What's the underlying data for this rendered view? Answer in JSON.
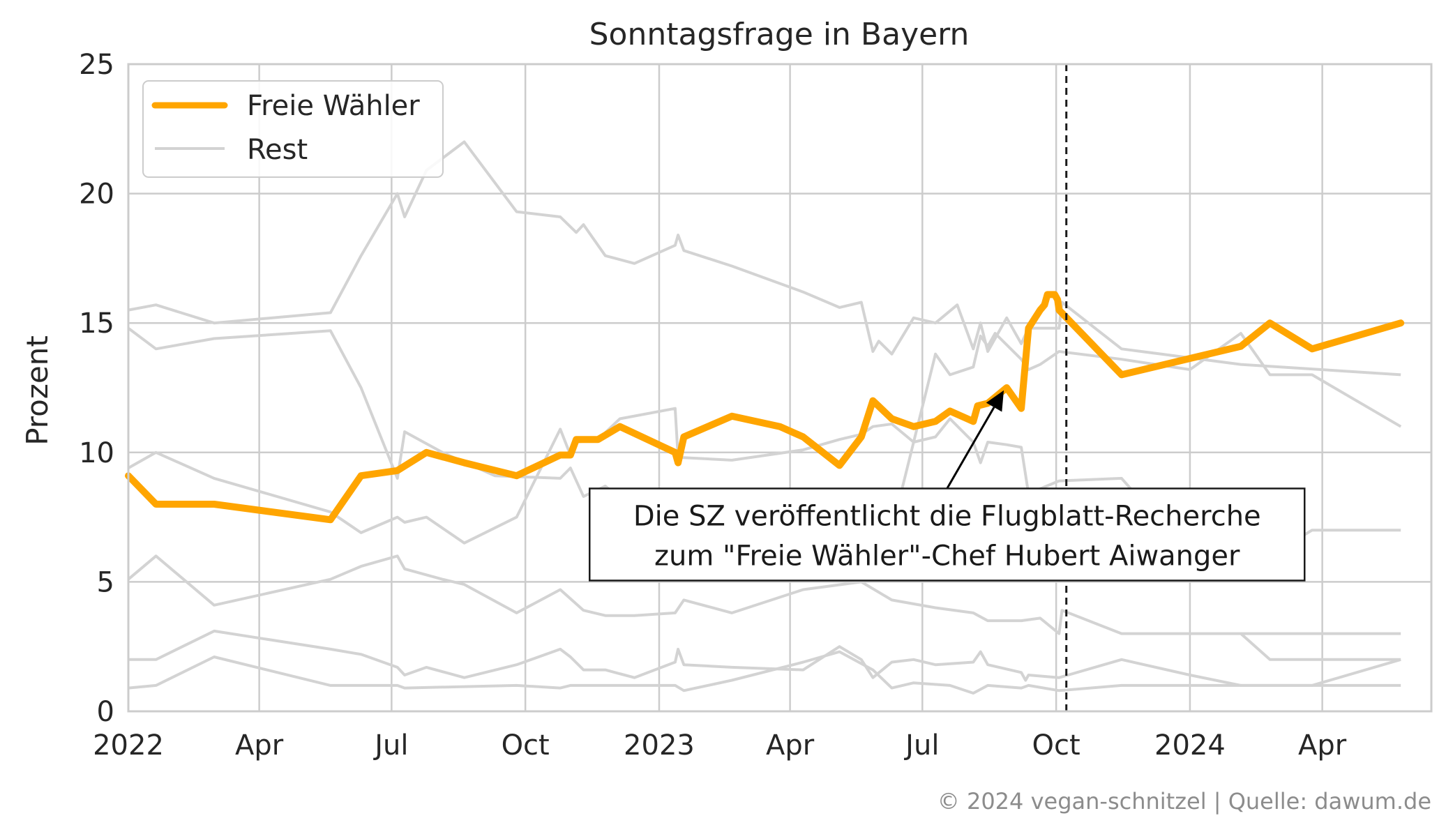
{
  "chart_data": {
    "type": "line",
    "title": "Sonntagsfrage in Bayern",
    "xlabel": "",
    "ylabel": "Prozent",
    "xlim": [
      "2022-01-01",
      "2024-06-15"
    ],
    "ylim": [
      0,
      25
    ],
    "yticks": [
      0,
      5,
      10,
      15,
      20,
      25
    ],
    "xticks": [
      {
        "date": "2022-01-01",
        "label": "2022"
      },
      {
        "date": "2022-04-01",
        "label": "Apr"
      },
      {
        "date": "2022-07-01",
        "label": "Jul"
      },
      {
        "date": "2022-10-01",
        "label": "Oct"
      },
      {
        "date": "2023-01-01",
        "label": "2023"
      },
      {
        "date": "2023-04-01",
        "label": "Apr"
      },
      {
        "date": "2023-07-01",
        "label": "Jul"
      },
      {
        "date": "2023-10-01",
        "label": "Oct"
      },
      {
        "date": "2024-01-01",
        "label": "2024"
      },
      {
        "date": "2024-04-01",
        "label": "Apr"
      }
    ],
    "grid": true,
    "legend_position": "top-left",
    "legend": [
      {
        "label": "Freie Wähler",
        "color": "#ffa500"
      },
      {
        "label": "Rest",
        "color": "#d3d3d3"
      }
    ],
    "vline": {
      "date": "2023-10-08",
      "style": "dashed",
      "color": "#1a1a1a"
    },
    "annotation": {
      "lines": [
        "Die SZ veröffentlicht die Flugblatt-Recherche",
        "zum \"Freie Wähler\"-Chef Hubert Aiwanger"
      ],
      "point": {
        "date": "2023-08-26",
        "value": 12.4
      },
      "text_anchor": {
        "date": "2023-07-18",
        "value": 8.5
      }
    },
    "highlight_series": {
      "name": "Freie Wähler",
      "color": "#ffa500",
      "points": [
        [
          "2022-01-01",
          9.1
        ],
        [
          "2022-01-20",
          8.0
        ],
        [
          "2022-03-01",
          8.0
        ],
        [
          "2022-05-20",
          7.4
        ],
        [
          "2022-06-10",
          9.1
        ],
        [
          "2022-07-05",
          9.3
        ],
        [
          "2022-07-25",
          10.0
        ],
        [
          "2022-08-20",
          9.6
        ],
        [
          "2022-09-25",
          9.1
        ],
        [
          "2022-10-25",
          9.9
        ],
        [
          "2022-11-01",
          9.9
        ],
        [
          "2022-11-05",
          10.5
        ],
        [
          "2022-11-20",
          10.5
        ],
        [
          "2022-12-05",
          11.0
        ],
        [
          "2023-01-12",
          10.0
        ],
        [
          "2023-01-14",
          9.6
        ],
        [
          "2023-01-18",
          10.6
        ],
        [
          "2023-02-20",
          11.4
        ],
        [
          "2023-03-25",
          11.0
        ],
        [
          "2023-04-10",
          10.6
        ],
        [
          "2023-05-05",
          9.5
        ],
        [
          "2023-05-20",
          10.6
        ],
        [
          "2023-05-28",
          12.0
        ],
        [
          "2023-06-10",
          11.3
        ],
        [
          "2023-06-25",
          11.0
        ],
        [
          "2023-07-10",
          11.2
        ],
        [
          "2023-07-20",
          11.6
        ],
        [
          "2023-08-05",
          11.2
        ],
        [
          "2023-08-08",
          11.8
        ],
        [
          "2023-08-15",
          11.9
        ],
        [
          "2023-08-28",
          12.5
        ],
        [
          "2023-09-07",
          11.7
        ],
        [
          "2023-09-12",
          14.8
        ],
        [
          "2023-09-20",
          15.5
        ],
        [
          "2023-09-23",
          15.7
        ],
        [
          "2023-09-25",
          16.1
        ],
        [
          "2023-09-30",
          16.1
        ],
        [
          "2023-10-02",
          15.9
        ],
        [
          "2023-10-03",
          15.5
        ],
        [
          "2023-11-15",
          13.0
        ],
        [
          "2024-02-05",
          14.1
        ],
        [
          "2024-02-25",
          15.0
        ],
        [
          "2024-03-25",
          14.0
        ],
        [
          "2024-05-25",
          15.0
        ]
      ]
    },
    "rest_series": [
      {
        "points": [
          [
            "2022-01-01",
            15.5
          ],
          [
            "2022-01-20",
            15.7
          ],
          [
            "2022-03-01",
            15.0
          ],
          [
            "2022-05-20",
            15.4
          ],
          [
            "2022-06-10",
            17.6
          ],
          [
            "2022-07-05",
            20.0
          ],
          [
            "2022-07-10",
            19.1
          ],
          [
            "2022-07-25",
            20.9
          ],
          [
            "2022-08-20",
            22.0
          ],
          [
            "2022-09-25",
            19.3
          ],
          [
            "2022-10-25",
            19.1
          ],
          [
            "2022-11-05",
            18.5
          ],
          [
            "2022-11-10",
            18.8
          ],
          [
            "2022-11-25",
            17.6
          ],
          [
            "2022-12-15",
            17.3
          ],
          [
            "2023-01-12",
            18.0
          ],
          [
            "2023-01-14",
            18.4
          ],
          [
            "2023-01-18",
            17.8
          ],
          [
            "2023-02-20",
            17.2
          ],
          [
            "2023-04-10",
            16.2
          ],
          [
            "2023-05-05",
            15.6
          ],
          [
            "2023-05-20",
            15.8
          ],
          [
            "2023-05-28",
            13.9
          ],
          [
            "2023-06-01",
            14.3
          ],
          [
            "2023-06-10",
            13.8
          ],
          [
            "2023-06-25",
            15.2
          ],
          [
            "2023-07-10",
            15.0
          ],
          [
            "2023-07-25",
            15.7
          ],
          [
            "2023-08-05",
            14.0
          ],
          [
            "2023-08-10",
            15.0
          ],
          [
            "2023-08-15",
            13.9
          ],
          [
            "2023-08-28",
            15.2
          ],
          [
            "2023-09-07",
            14.2
          ],
          [
            "2023-09-12",
            14.8
          ],
          [
            "2023-10-03",
            14.8
          ],
          [
            "2023-10-05",
            15.8
          ],
          [
            "2023-11-15",
            14.0
          ],
          [
            "2024-02-05",
            13.4
          ],
          [
            "2024-05-25",
            13.0
          ]
        ]
      },
      {
        "points": [
          [
            "2022-01-01",
            14.8
          ],
          [
            "2022-01-20",
            14.0
          ],
          [
            "2022-03-01",
            14.4
          ],
          [
            "2022-05-20",
            14.7
          ],
          [
            "2022-06-10",
            12.5
          ],
          [
            "2022-07-05",
            9.0
          ],
          [
            "2022-07-10",
            10.8
          ],
          [
            "2022-08-05",
            10.0
          ],
          [
            "2022-09-10",
            9.1
          ],
          [
            "2022-10-25",
            9.0
          ],
          [
            "2022-11-01",
            9.4
          ],
          [
            "2022-11-10",
            8.3
          ],
          [
            "2022-11-25",
            8.7
          ],
          [
            "2022-12-15",
            7.8
          ],
          [
            "2023-01-12",
            7.5
          ],
          [
            "2023-01-18",
            7.1
          ],
          [
            "2023-02-20",
            7.4
          ],
          [
            "2023-04-10",
            7.6
          ],
          [
            "2023-05-20",
            7.2
          ],
          [
            "2023-06-10",
            7.0
          ],
          [
            "2023-07-10",
            13.8
          ],
          [
            "2023-07-20",
            13.0
          ],
          [
            "2023-08-05",
            13.3
          ],
          [
            "2023-08-10",
            14.5
          ],
          [
            "2023-08-15",
            14.1
          ],
          [
            "2023-08-20",
            14.6
          ],
          [
            "2023-09-07",
            13.6
          ],
          [
            "2023-09-12",
            13.2
          ],
          [
            "2023-09-20",
            13.4
          ],
          [
            "2023-10-03",
            13.9
          ],
          [
            "2023-11-15",
            13.6
          ],
          [
            "2024-01-01",
            13.2
          ],
          [
            "2024-02-05",
            14.6
          ],
          [
            "2024-02-25",
            13.0
          ],
          [
            "2024-03-25",
            13.0
          ],
          [
            "2024-05-25",
            11.0
          ]
        ]
      },
      {
        "points": [
          [
            "2022-01-01",
            9.4
          ],
          [
            "2022-01-20",
            10.0
          ],
          [
            "2022-03-01",
            9.0
          ],
          [
            "2022-05-20",
            7.7
          ],
          [
            "2022-06-10",
            6.9
          ],
          [
            "2022-07-05",
            7.5
          ],
          [
            "2022-07-10",
            7.3
          ],
          [
            "2022-07-25",
            7.5
          ],
          [
            "2022-08-20",
            6.5
          ],
          [
            "2022-09-25",
            7.5
          ],
          [
            "2022-10-25",
            10.9
          ],
          [
            "2022-11-01",
            9.9
          ],
          [
            "2022-11-05",
            10.4
          ],
          [
            "2022-11-20",
            10.5
          ],
          [
            "2022-12-05",
            11.3
          ],
          [
            "2023-01-12",
            11.7
          ],
          [
            "2023-01-14",
            9.8
          ],
          [
            "2023-01-18",
            9.8
          ],
          [
            "2023-02-20",
            9.7
          ],
          [
            "2023-04-10",
            10.1
          ],
          [
            "2023-05-05",
            10.5
          ],
          [
            "2023-05-20",
            10.7
          ],
          [
            "2023-05-28",
            11.0
          ],
          [
            "2023-06-10",
            11.1
          ],
          [
            "2023-06-25",
            10.4
          ],
          [
            "2023-07-10",
            10.6
          ],
          [
            "2023-07-20",
            11.3
          ],
          [
            "2023-08-05",
            10.4
          ],
          [
            "2023-08-10",
            9.6
          ],
          [
            "2023-08-15",
            10.4
          ],
          [
            "2023-08-28",
            10.3
          ],
          [
            "2023-09-07",
            10.2
          ],
          [
            "2023-09-12",
            8.4
          ],
          [
            "2023-09-20",
            8.6
          ],
          [
            "2023-10-03",
            8.9
          ],
          [
            "2023-11-15",
            9.0
          ],
          [
            "2024-01-01",
            6.0
          ],
          [
            "2024-02-05",
            6.6
          ],
          [
            "2024-02-25",
            6.0
          ],
          [
            "2024-03-25",
            7.0
          ],
          [
            "2024-05-25",
            7.0
          ]
        ]
      },
      {
        "points": [
          [
            "2022-01-01",
            5.1
          ],
          [
            "2022-01-20",
            6.0
          ],
          [
            "2022-03-01",
            4.1
          ],
          [
            "2022-05-20",
            5.1
          ],
          [
            "2022-06-10",
            5.6
          ],
          [
            "2022-07-05",
            6.0
          ],
          [
            "2022-07-10",
            5.5
          ],
          [
            "2022-08-05",
            5.1
          ],
          [
            "2022-08-20",
            4.9
          ],
          [
            "2022-09-25",
            3.8
          ],
          [
            "2022-10-25",
            4.7
          ],
          [
            "2022-11-10",
            3.9
          ],
          [
            "2022-11-25",
            3.7
          ],
          [
            "2022-12-15",
            3.7
          ],
          [
            "2023-01-12",
            3.8
          ],
          [
            "2023-01-18",
            4.3
          ],
          [
            "2023-02-20",
            3.8
          ],
          [
            "2023-04-10",
            4.7
          ],
          [
            "2023-05-20",
            5.0
          ],
          [
            "2023-06-10",
            4.3
          ],
          [
            "2023-07-10",
            4.0
          ],
          [
            "2023-08-05",
            3.8
          ],
          [
            "2023-08-15",
            3.5
          ],
          [
            "2023-09-07",
            3.5
          ],
          [
            "2023-09-20",
            3.6
          ],
          [
            "2023-10-03",
            3.0
          ],
          [
            "2023-10-05",
            3.9
          ],
          [
            "2023-11-15",
            3.0
          ],
          [
            "2024-01-01",
            3.0
          ],
          [
            "2024-02-05",
            3.0
          ],
          [
            "2024-02-25",
            2.0
          ],
          [
            "2024-05-25",
            2.0
          ]
        ]
      },
      {
        "points": [
          [
            "2022-01-01",
            2.0
          ],
          [
            "2022-01-20",
            2.0
          ],
          [
            "2022-03-01",
            3.1
          ],
          [
            "2022-05-20",
            2.4
          ],
          [
            "2022-06-10",
            2.2
          ],
          [
            "2022-07-05",
            1.7
          ],
          [
            "2022-07-10",
            1.4
          ],
          [
            "2022-07-25",
            1.7
          ],
          [
            "2022-08-20",
            1.3
          ],
          [
            "2022-09-25",
            1.8
          ],
          [
            "2022-10-25",
            2.4
          ],
          [
            "2022-11-01",
            2.1
          ],
          [
            "2022-11-10",
            1.6
          ],
          [
            "2022-11-25",
            1.6
          ],
          [
            "2022-12-15",
            1.3
          ],
          [
            "2023-01-12",
            1.9
          ],
          [
            "2023-01-14",
            2.4
          ],
          [
            "2023-01-18",
            1.8
          ],
          [
            "2023-02-20",
            1.7
          ],
          [
            "2023-04-10",
            1.6
          ],
          [
            "2023-05-05",
            2.5
          ],
          [
            "2023-05-20",
            2.0
          ],
          [
            "2023-05-28",
            1.3
          ],
          [
            "2023-06-10",
            1.9
          ],
          [
            "2023-06-25",
            2.0
          ],
          [
            "2023-07-10",
            1.8
          ],
          [
            "2023-08-05",
            1.9
          ],
          [
            "2023-08-10",
            2.3
          ],
          [
            "2023-08-15",
            1.8
          ],
          [
            "2023-09-07",
            1.5
          ],
          [
            "2023-09-10",
            1.2
          ],
          [
            "2023-09-12",
            1.4
          ],
          [
            "2023-10-03",
            1.3
          ],
          [
            "2023-11-15",
            2.0
          ],
          [
            "2024-01-01",
            1.4
          ],
          [
            "2024-02-05",
            1.0
          ],
          [
            "2024-03-25",
            1.0
          ],
          [
            "2024-05-25",
            2.0
          ]
        ]
      },
      {
        "points": [
          [
            "2022-01-01",
            0.9
          ],
          [
            "2022-01-20",
            1.0
          ],
          [
            "2022-03-01",
            2.1
          ],
          [
            "2022-05-20",
            1.0
          ],
          [
            "2022-07-05",
            1.0
          ],
          [
            "2022-07-10",
            0.9
          ],
          [
            "2022-09-25",
            1.0
          ],
          [
            "2022-10-25",
            0.9
          ],
          [
            "2022-11-01",
            1.0
          ],
          [
            "2023-01-12",
            1.0
          ],
          [
            "2023-01-18",
            0.8
          ],
          [
            "2023-02-20",
            1.2
          ],
          [
            "2023-04-10",
            1.9
          ],
          [
            "2023-05-05",
            2.3
          ],
          [
            "2023-05-28",
            1.6
          ],
          [
            "2023-06-10",
            0.9
          ],
          [
            "2023-06-25",
            1.1
          ],
          [
            "2023-07-20",
            1.0
          ],
          [
            "2023-08-05",
            0.7
          ],
          [
            "2023-08-15",
            1.0
          ],
          [
            "2023-09-07",
            0.9
          ],
          [
            "2023-09-12",
            1.0
          ],
          [
            "2023-10-03",
            0.8
          ],
          [
            "2023-11-15",
            1.0
          ],
          [
            "2024-02-05",
            1.0
          ],
          [
            "2024-05-25",
            1.0
          ]
        ]
      },
      {
        "points": [
          [
            "2024-02-05",
            3.0
          ],
          [
            "2024-05-25",
            3.0
          ]
        ]
      }
    ]
  },
  "footer": "© 2024 vegan-schnitzel | Quelle: dawum.de"
}
